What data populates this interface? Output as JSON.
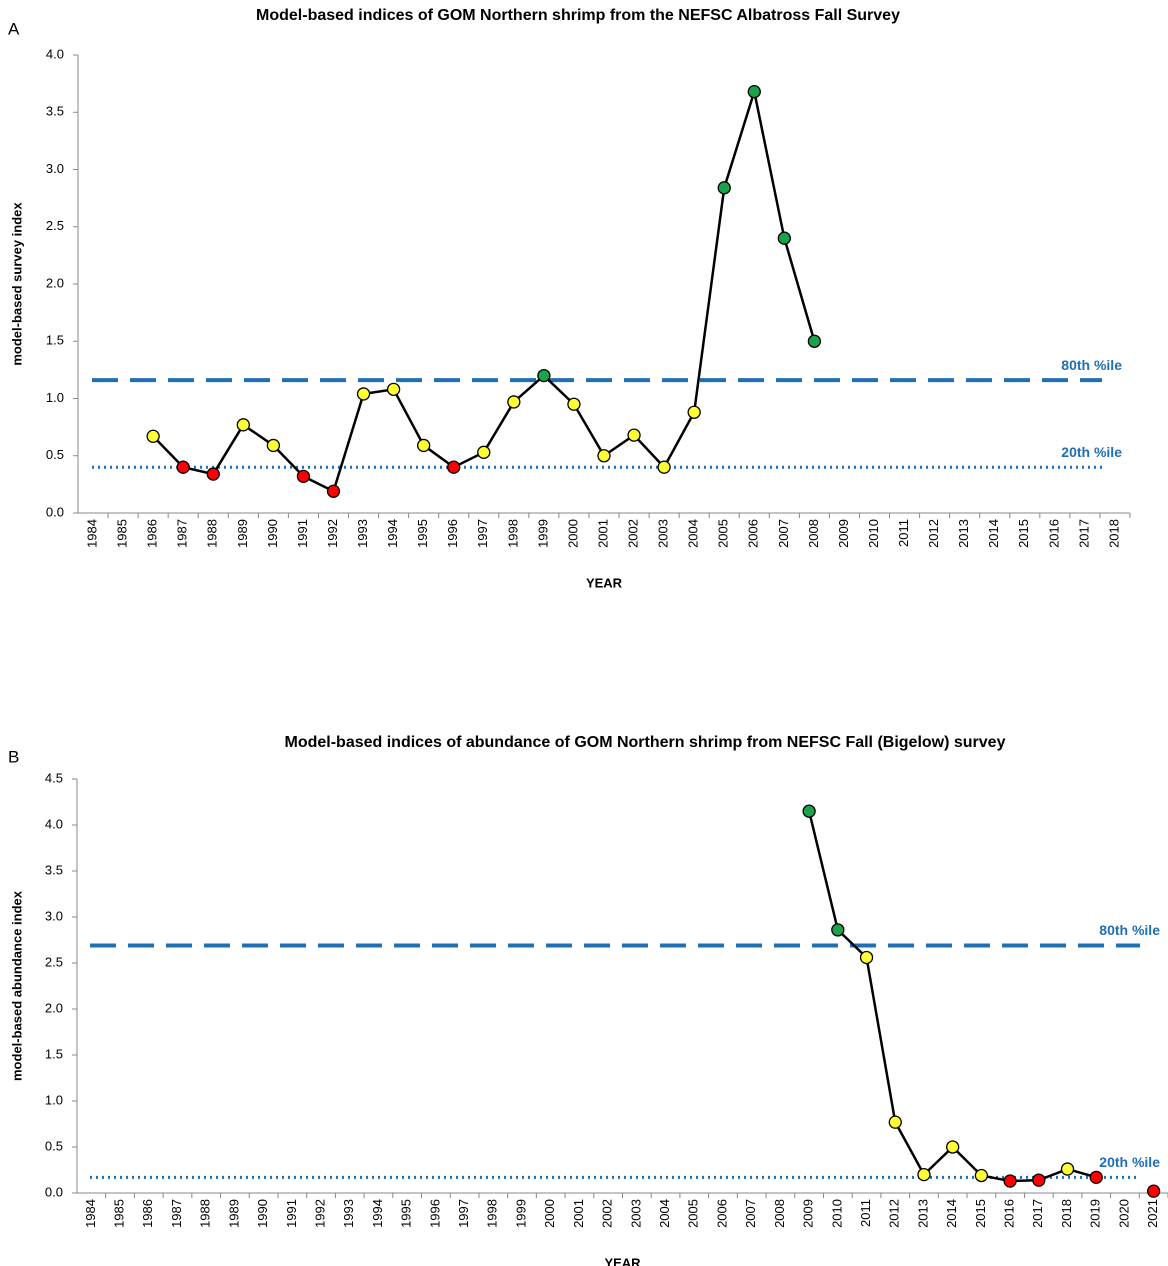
{
  "chart_data": [
    {
      "type": "line",
      "panel": "A",
      "title": "Model-based indices of GOM Northern shrimp from the NEFSC Albatross Fall Survey",
      "y_label": "model-based survey index",
      "x_label": "YEAR",
      "categories": [
        "1984",
        "1985",
        "1986",
        "1987",
        "1988",
        "1989",
        "1990",
        "1991",
        "1992",
        "1993",
        "1994",
        "1995",
        "1996",
        "1997",
        "1998",
        "1999",
        "2000",
        "2001",
        "2002",
        "2003",
        "2004",
        "2005",
        "2006",
        "2007",
        "2008",
        "2009",
        "2010",
        "2011",
        "2012",
        "2013",
        "2014",
        "2015",
        "2016",
        "2017",
        "2018"
      ],
      "series": [
        {
          "color": "#000000",
          "values": [
            null,
            null,
            0.67,
            0.4,
            0.34,
            0.77,
            0.59,
            0.32,
            0.19,
            1.04,
            1.08,
            0.59,
            0.4,
            0.53,
            0.97,
            1.2,
            0.95,
            0.5,
            0.68,
            0.4,
            0.88,
            2.84,
            3.68,
            2.4,
            1.5,
            null,
            null,
            null,
            null,
            null,
            null,
            null,
            null,
            null,
            null
          ],
          "point_colors": [
            null,
            null,
            "#ffff33",
            "#ff0000",
            "#ff0000",
            "#ffff33",
            "#ffff33",
            "#ff0000",
            "#ff0000",
            "#ffff33",
            "#ffff33",
            "#ffff33",
            "#ff0000",
            "#ffff33",
            "#ffff33",
            "#1aa34a",
            "#ffff33",
            "#ffff33",
            "#ffff33",
            "#ffff33",
            "#ffff33",
            "#1aa34a",
            "#1aa34a",
            "#1aa34a",
            "#1aa34a",
            null,
            null,
            null,
            null,
            null,
            null,
            null,
            null,
            null,
            null
          ]
        }
      ],
      "reference_lines": [
        {
          "label": "80th %ile",
          "value": 1.16,
          "style": "dashed",
          "color": "#1f6fb4"
        },
        {
          "label": "20th %ile",
          "value": 0.4,
          "style": "dotted",
          "color": "#1f6fb4"
        }
      ],
      "ylim": [
        0,
        4
      ],
      "yticks": [
        {
          "value": 0,
          "label": "0.0"
        },
        0.5,
        {
          "value": 1,
          "label": "1.0"
        },
        1.5,
        {
          "value": 2,
          "label": "2.0"
        },
        2.5,
        {
          "value": 3,
          "label": "3.0"
        },
        3.5,
        {
          "value": 4,
          "label": "4.0"
        }
      ],
      "grid": false
    },
    {
      "type": "line",
      "panel": "B",
      "title": "Model-based indices of abundance of GOM Northern shrimp from NEFSC Fall (Bigelow) survey",
      "y_label": "model-based abundance index",
      "x_label": "YEAR",
      "categories": [
        "1984",
        "1985",
        "1986",
        "1987",
        "1988",
        "1989",
        "1990",
        "1991",
        "1992",
        "1993",
        "1994",
        "1995",
        "1996",
        "1997",
        "1998",
        "1999",
        "2000",
        "2001",
        "2002",
        "2003",
        "2004",
        "2005",
        "2006",
        "2007",
        "2008",
        "2009",
        "2010",
        "2011",
        "2012",
        "2013",
        "2014",
        "2015",
        "2016",
        "2017",
        "2018",
        "2019",
        "2020",
        "2021"
      ],
      "series": [
        {
          "color": "#000000",
          "values": [
            null,
            null,
            null,
            null,
            null,
            null,
            null,
            null,
            null,
            null,
            null,
            null,
            null,
            null,
            null,
            null,
            null,
            null,
            null,
            null,
            null,
            null,
            null,
            null,
            null,
            4.15,
            2.86,
            2.56,
            0.77,
            0.2,
            0.5,
            0.19,
            0.13,
            0.14,
            0.26,
            0.17,
            null,
            0.02
          ],
          "point_colors": [
            null,
            null,
            null,
            null,
            null,
            null,
            null,
            null,
            null,
            null,
            null,
            null,
            null,
            null,
            null,
            null,
            null,
            null,
            null,
            null,
            null,
            null,
            null,
            null,
            null,
            "#1aa34a",
            "#1aa34a",
            "#ffff33",
            "#ffff33",
            "#ffff33",
            "#ffff33",
            "#ffff33",
            "#ff0000",
            "#ff0000",
            "#ffff33",
            "#ff0000",
            null,
            "#ff0000"
          ]
        }
      ],
      "reference_lines": [
        {
          "label": "80th %ile",
          "value": 2.69,
          "style": "dashed",
          "color": "#1f6fb4"
        },
        {
          "label": "20th %ile",
          "value": 0.17,
          "style": "dotted",
          "color": "#1f6fb4"
        }
      ],
      "ylim": [
        0,
        4.5
      ],
      "yticks": [
        {
          "value": 0,
          "label": "0.0"
        },
        0.5,
        {
          "value": 1,
          "label": "1.0"
        },
        1.5,
        {
          "value": 2,
          "label": "2.0"
        },
        2.5,
        {
          "value": 3,
          "label": "3.0"
        },
        3.5,
        {
          "value": 4,
          "label": "4.0"
        },
        4.5
      ],
      "grid": false
    }
  ]
}
